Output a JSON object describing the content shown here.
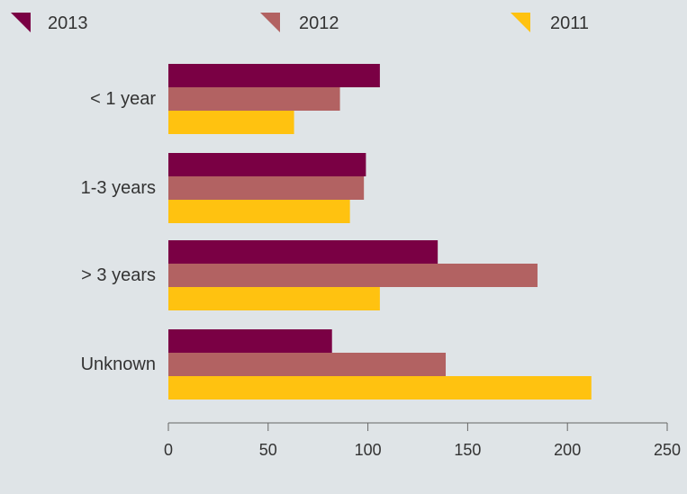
{
  "chart_data": {
    "type": "bar",
    "orientation": "horizontal",
    "categories": [
      "< 1 year",
      "1-3 years",
      "> 3 years",
      "Unknown"
    ],
    "series": [
      {
        "name": "2013",
        "color": "#7a0044",
        "values": [
          106,
          99,
          135,
          82
        ]
      },
      {
        "name": "2012",
        "color": "#b26262",
        "values": [
          86,
          98,
          185,
          139
        ]
      },
      {
        "name": "2011",
        "color": "#ffc210",
        "values": [
          63,
          91,
          106,
          212
        ]
      }
    ],
    "xlim": [
      0,
      250
    ],
    "xticks": [
      "0",
      "50",
      "100",
      "150",
      "200",
      "250"
    ],
    "legend_position": "top",
    "grid": false
  }
}
